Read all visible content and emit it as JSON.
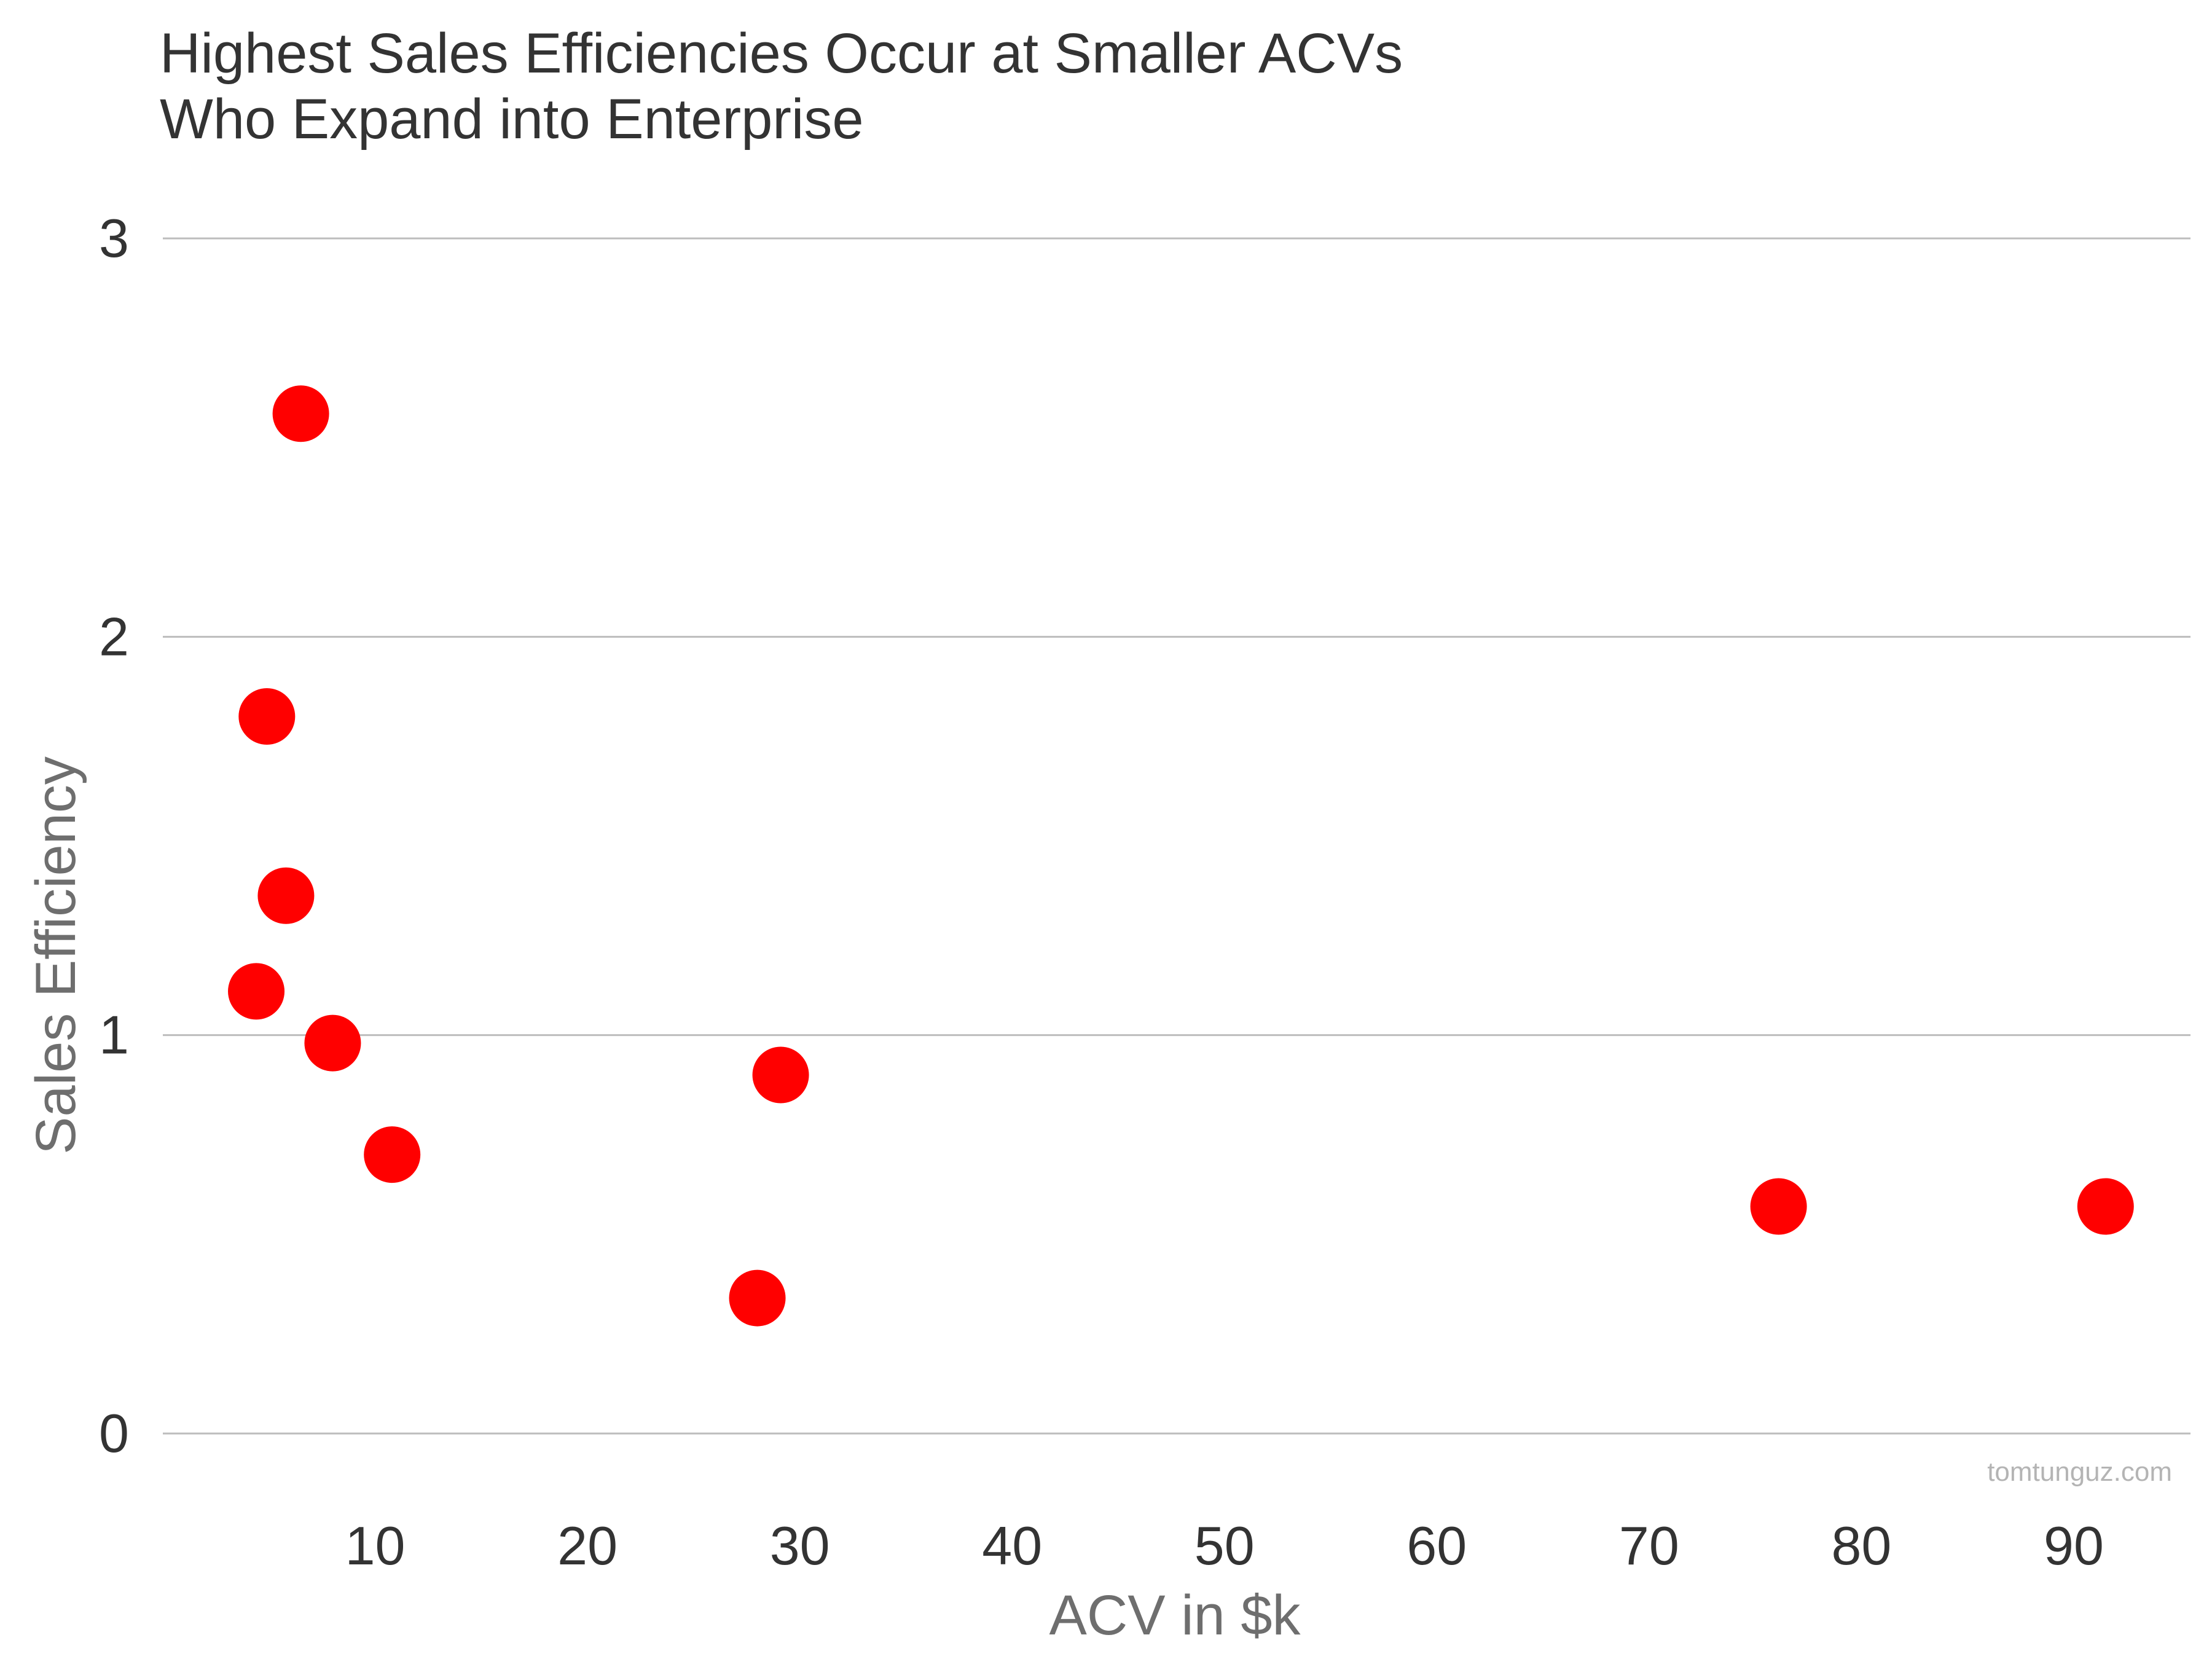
{
  "chart_data": {
    "type": "scatter",
    "title_lines": [
      "Highest Sales Efficiencies Occur at Smaller ACVs",
      "Who Expand into Enterprise"
    ],
    "xlabel": "ACV in $k",
    "ylabel": "Sales Efficiency",
    "x_ticks": [
      "10",
      "20",
      "30",
      "40",
      "50",
      "60",
      "70",
      "80",
      "90"
    ],
    "y_ticks": [
      "0",
      "1",
      "2",
      "3"
    ],
    "xlim": [
      0,
      95.5
    ],
    "ylim": [
      0,
      3
    ],
    "grid": "horizontal",
    "marker_color": "#ff0000",
    "source": "tomtunguz.com",
    "series": [
      {
        "points": [
          {
            "x": 6.5,
            "y": 2.56
          },
          {
            "x": 4.9,
            "y": 1.8
          },
          {
            "x": 5.8,
            "y": 1.35
          },
          {
            "x": 4.4,
            "y": 1.11
          },
          {
            "x": 8.0,
            "y": 0.98
          },
          {
            "x": 10.8,
            "y": 0.7
          },
          {
            "x": 29.1,
            "y": 0.9
          },
          {
            "x": 28.0,
            "y": 0.34
          },
          {
            "x": 76.1,
            "y": 0.57
          },
          {
            "x": 91.5,
            "y": 0.57
          }
        ]
      }
    ]
  }
}
